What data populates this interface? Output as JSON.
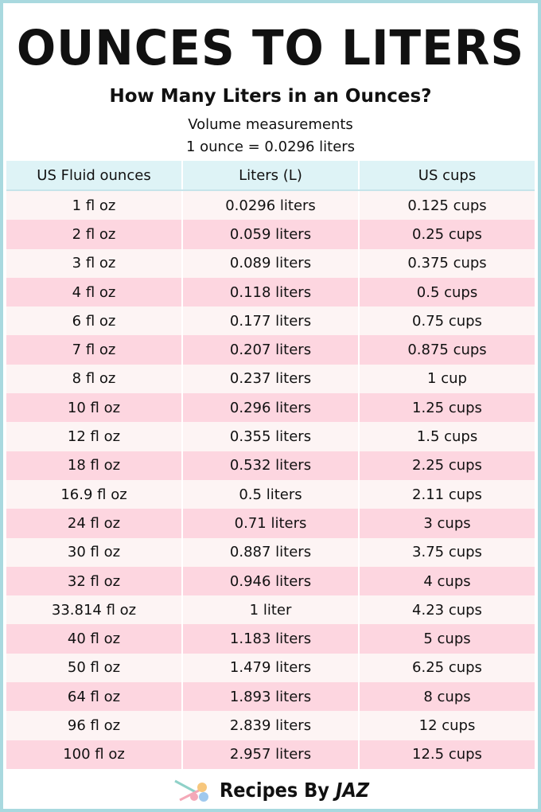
{
  "header": {
    "title": "OUNCES TO LITERS",
    "subtitle": "How Many Liters in an Ounces?",
    "lines": [
      "Volume measurements",
      "1 ounce = 0.0296 liters"
    ]
  },
  "table": {
    "columns": [
      "US Fluid ounces",
      "Liters (L)",
      "US cups"
    ],
    "rows": [
      [
        "1 fl oz",
        "0.0296 liters",
        "0.125 cups"
      ],
      [
        "2 fl oz",
        "0.059 liters",
        "0.25 cups"
      ],
      [
        "3 fl oz",
        "0.089 liters",
        "0.375 cups"
      ],
      [
        "4 fl oz",
        "0.118 liters",
        "0.5 cups"
      ],
      [
        "6 fl oz",
        "0.177 liters",
        "0.75 cups"
      ],
      [
        "7 fl oz",
        "0.207 liters",
        "0.875 cups"
      ],
      [
        "8 fl oz",
        "0.237 liters",
        "1 cup"
      ],
      [
        "10 fl oz",
        "0.296 liters",
        "1.25 cups"
      ],
      [
        "12 fl oz",
        "0.355 liters",
        "1.5 cups"
      ],
      [
        "18 fl oz",
        "0.532 liters",
        "2.25 cups"
      ],
      [
        "16.9 fl oz",
        "0.5 liters",
        "2.11 cups"
      ],
      [
        "24 fl oz",
        "0.71 liters",
        "3 cups"
      ],
      [
        "30 fl oz",
        "0.887 liters",
        "3.75 cups"
      ],
      [
        "32 fl oz",
        "0.946 liters",
        "4 cups"
      ],
      [
        "33.814 fl oz",
        "1 liter",
        "4.23 cups"
      ],
      [
        "40 fl oz",
        "1.183 liters",
        "5 cups"
      ],
      [
        "50 fl oz",
        "1.479 liters",
        "6.25 cups"
      ],
      [
        "64 fl oz",
        "1.893 liters",
        "8 cups"
      ],
      [
        "96 fl oz",
        "2.839 liters",
        "12 cups"
      ],
      [
        "100 fl oz",
        "2.957 liters",
        "12.5 cups"
      ]
    ]
  },
  "footer": {
    "brand": "Recipes By",
    "brand_emphasis": "JAZ"
  }
}
